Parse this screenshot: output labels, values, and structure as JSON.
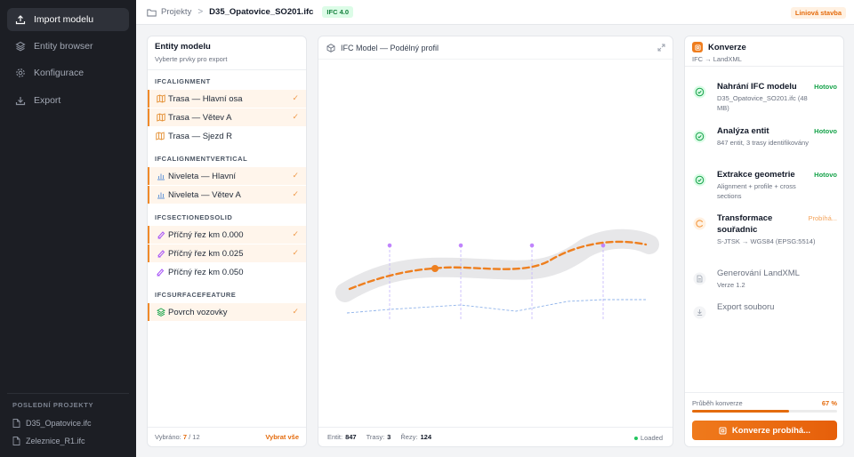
{
  "sidebar": {
    "nav": [
      {
        "label": "Import modelu",
        "icon": "upload-icon",
        "active": true
      },
      {
        "label": "Entity browser",
        "icon": "layers-icon",
        "active": false
      },
      {
        "label": "Konfigurace",
        "icon": "gear-icon",
        "active": false
      },
      {
        "label": "Export",
        "icon": "download-icon",
        "active": false
      }
    ],
    "recent_title": "POSLEDNÍ PROJEKTY",
    "recent": [
      "D35_Opatovice.ifc",
      "Zeleznice_R1.ifc"
    ]
  },
  "topbar": {
    "breadcrumb_root": "Projekty",
    "separator": ">",
    "file": "D35_Opatovice_SO201.ifc",
    "ifc_version": "IFC 4.0",
    "project_type": "Liniová stavba"
  },
  "entities": {
    "title": "Entity modelu",
    "subtitle": "Vyberte prvky pro export",
    "groups": [
      {
        "label": "IFCALIGNMENT",
        "items": [
          {
            "label": "Trasa — Hlavní osa",
            "selected": true
          },
          {
            "label": "Trasa — Větev A",
            "selected": true
          },
          {
            "label": "Trasa — Sjezd R",
            "selected": false
          }
        ]
      },
      {
        "label": "IFCALIGNMENTVERTICAL",
        "items": [
          {
            "label": "Niveleta — Hlavní",
            "selected": true
          },
          {
            "label": "Niveleta — Větev A",
            "selected": true
          }
        ]
      },
      {
        "label": "IFCSECTIONEDSOLID",
        "items": [
          {
            "label": "Příčný řez km 0.000",
            "selected": true
          },
          {
            "label": "Příčný řez km 0.025",
            "selected": true
          },
          {
            "label": "Příčný řez km 0.050",
            "selected": false
          }
        ]
      },
      {
        "label": "IFCSURFACEFEATURE",
        "items": [
          {
            "label": "Povrch vozovky",
            "selected": true
          }
        ]
      }
    ],
    "check_mark": "✓",
    "footer_label": "Vybráno:",
    "selected_count": "7",
    "total_count": "12",
    "select_all": "Vybrat vše"
  },
  "viewer": {
    "title": "IFC Model — Podélný profil",
    "stats": {
      "entities_label": "Entit:",
      "entities": "847",
      "routes_label": "Trasy:",
      "routes": "3",
      "sections_label": "Řezy:",
      "sections": "124"
    },
    "status": "Loaded"
  },
  "conversion": {
    "title": "Konverze",
    "subtitle": "IFC → LandXML",
    "steps": [
      {
        "title": "Nahrání IFC modelu",
        "sub": "D35_Opatovice_SO201.ifc (48 MB)",
        "status": "Hotovo",
        "state": "done"
      },
      {
        "title": "Analýza entit",
        "sub": "847 entit, 3 trasy identifikovány",
        "status": "Hotovo",
        "state": "done"
      },
      {
        "title": "Extrakce geometrie",
        "sub": "Alignment + profile + cross sections",
        "status": "Hotovo",
        "state": "done"
      },
      {
        "title": "Transformace souřadnic",
        "sub": "S-JTSK → WGS84 (EPSG:5514)",
        "status": "Probíhá...",
        "state": "progress"
      },
      {
        "title": "Generování LandXML",
        "sub": "Verze 1.2",
        "status": "",
        "state": "pending"
      },
      {
        "title": "Export souboru",
        "sub": "",
        "status": "",
        "state": "pending"
      }
    ],
    "progress_label": "Průběh konverze",
    "progress_percent": "67 %",
    "progress_value": 0.67,
    "button_label": "Konverze probíhá..."
  },
  "colors": {
    "accent": "#e46b0d",
    "done": "#16a34a",
    "sidebar_bg": "#1c1e24"
  }
}
